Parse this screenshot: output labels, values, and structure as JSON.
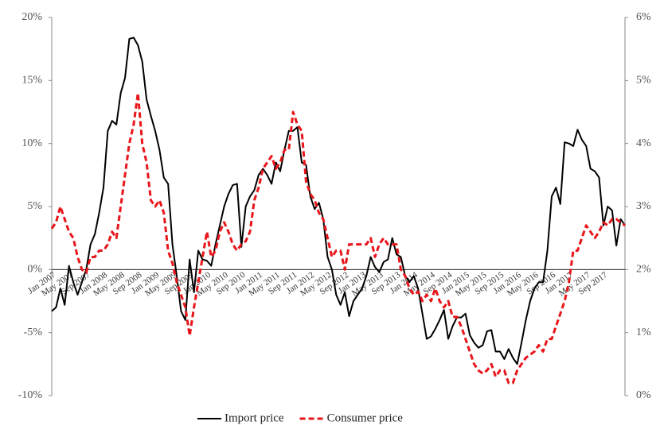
{
  "chart_data": {
    "type": "line",
    "categories": [
      "Jan 2007",
      null,
      null,
      null,
      "May 2007",
      null,
      null,
      null,
      "Sep 2007",
      null,
      null,
      null,
      "Jan 2008",
      null,
      null,
      null,
      "May 2008",
      null,
      null,
      null,
      "Sep 2008",
      null,
      null,
      null,
      "Jan 2009",
      null,
      null,
      null,
      "May 2009",
      null,
      null,
      null,
      "Sep 2009",
      null,
      null,
      null,
      "Jan 2010",
      null,
      null,
      null,
      "May 2010",
      null,
      null,
      null,
      "Sep 2010",
      null,
      null,
      null,
      "Jan 2011",
      null,
      null,
      null,
      "May 2011",
      null,
      null,
      null,
      "Sep 2011",
      null,
      null,
      null,
      "Jan 2012",
      null,
      null,
      null,
      "May 2012",
      null,
      null,
      null,
      "Sep 2012",
      null,
      null,
      null,
      "Jan 2013",
      null,
      null,
      null,
      "May 2013",
      null,
      null,
      null,
      "Sep 2013",
      null,
      null,
      null,
      "Jan 2014",
      null,
      null,
      null,
      "May 2014",
      null,
      null,
      null,
      "Sep 2014",
      null,
      null,
      null,
      "Jan 2015",
      null,
      null,
      null,
      "May 2015",
      null,
      null,
      null,
      "Sep 2015",
      null,
      null,
      null,
      "Jan 2016",
      null,
      null,
      null,
      "May 2016",
      null,
      null,
      null,
      "Sep 2016",
      null,
      null,
      null,
      "Jan 2017",
      null,
      null,
      null,
      "May 2017",
      null,
      null,
      null,
      "Sep 2017",
      null,
      null,
      null,
      null,
      null
    ],
    "series": [
      {
        "name": "Import price",
        "color": "#000000",
        "dash": false,
        "values": [
          -3.3,
          -3.0,
          -1.5,
          -2.8,
          0.3,
          -1.0,
          -2.0,
          -1.0,
          0,
          2.0,
          2.8,
          4.5,
          6.5,
          11,
          11.8,
          11.5,
          14,
          15.2,
          18.3,
          18.4,
          17.8,
          16.5,
          13.5,
          12.2,
          11,
          9.5,
          7.3,
          6.8,
          2,
          -0.5,
          -3.3,
          -4.0,
          0.8,
          -1.8,
          1.5,
          0.8,
          0.7,
          0.3,
          2,
          3.5,
          5,
          6,
          6.7,
          6.8,
          1.8,
          5,
          5.8,
          6.3,
          7.5,
          8,
          7.5,
          6.8,
          8.5,
          7.8,
          9.5,
          11,
          11,
          11.3,
          8.5,
          8.3,
          5.8,
          4.8,
          5.3,
          4,
          1,
          0,
          -2,
          -2.8,
          -1.8,
          -3.7,
          -2.5,
          -2,
          -1.5,
          -0.5,
          1,
          0.2,
          -0.2,
          0.6,
          0.8,
          2.5,
          1.2,
          1.0,
          -0.5,
          -1.0,
          -0.5,
          -1.5,
          -3.5,
          -5.5,
          -5.3,
          -4.7,
          -4,
          -3.2,
          -5.5,
          -4.5,
          -3.8,
          -3.8,
          -3.5,
          -5.2,
          -5.8,
          -6.2,
          -6.0,
          -4.9,
          -4.8,
          -6.5,
          -6.5,
          -7.1,
          -6.3,
          -7.0,
          -7.5,
          -5.8,
          -4,
          -2.5,
          -1.5,
          -1.0,
          -1.0,
          1.5,
          5.8,
          6.5,
          5.2,
          10.1,
          10,
          9.8,
          11.1,
          10.3,
          9.8,
          8,
          7.8,
          7.3,
          3.5,
          5,
          4.7,
          1.9,
          4.0,
          3.5
        ]
      },
      {
        "name": "Consumer price",
        "color": "#e8161b",
        "dash": true,
        "axis": "y2",
        "values": [
          2.65,
          2.75,
          3.0,
          2.8,
          2.6,
          2.5,
          2.2,
          2.0,
          1.95,
          2.2,
          2.2,
          2.3,
          2.3,
          2.4,
          2.6,
          2.5,
          3.0,
          3.5,
          4.0,
          4.3,
          4.8,
          4.0,
          3.7,
          3.1,
          3.0,
          3.1,
          2.9,
          2.3,
          2.1,
          1.8,
          1.6,
          1.4,
          0.95,
          1.4,
          1.8,
          2.2,
          2.6,
          2.2,
          2.3,
          2.6,
          2.75,
          2.6,
          2.4,
          2.3,
          2.4,
          2.45,
          2.6,
          3.1,
          3.3,
          3.6,
          3.7,
          3.8,
          3.6,
          3.7,
          3.9,
          3.9,
          4.5,
          4.3,
          4.2,
          3.4,
          3.2,
          3.1,
          2.9,
          2.8,
          2.5,
          2.2,
          2.3,
          2.3,
          2.0,
          2.4,
          2.4,
          2.4,
          2.4,
          2.4,
          2.5,
          2.2,
          2.4,
          2.5,
          2.4,
          2.4,
          2.4,
          2.0,
          1.9,
          1.7,
          1.6,
          1.65,
          1.5,
          1.6,
          1.5,
          1.7,
          1.5,
          1.4,
          1.5,
          1.25,
          1.25,
          1.1,
          0.9,
          0.7,
          0.5,
          0.4,
          0.35,
          0.4,
          0.5,
          0.3,
          0.4,
          0.4,
          0.2,
          0.2,
          0.4,
          0.5,
          0.6,
          0.65,
          0.7,
          0.8,
          0.7,
          0.9,
          0.9,
          1.1,
          1.3,
          1.5,
          1.8,
          2.3,
          2.3,
          2.5,
          2.7,
          2.6,
          2.5,
          2.6,
          2.75,
          2.7,
          2.8,
          2.8,
          2.75,
          2.7
        ]
      }
    ],
    "ylim": [
      -10,
      20
    ],
    "yticks": [
      {
        "value": -10,
        "label": "-10%"
      },
      {
        "value": -5,
        "label": "-5%"
      },
      {
        "value": 0,
        "label": "0%"
      },
      {
        "value": 5,
        "label": "5%"
      },
      {
        "value": 10,
        "label": "10%"
      },
      {
        "value": 15,
        "label": "15%"
      },
      {
        "value": 20,
        "label": "20%"
      }
    ],
    "y2lim": [
      0,
      6
    ],
    "y2ticks": [
      {
        "value": 0,
        "label": "0%"
      },
      {
        "value": 1,
        "label": "1%"
      },
      {
        "value": 2,
        "label": "2%"
      },
      {
        "value": 3,
        "label": "3%"
      },
      {
        "value": 4,
        "label": "4%"
      },
      {
        "value": 5,
        "label": "5%"
      },
      {
        "value": 6,
        "label": "6%"
      }
    ],
    "legend": "bottom"
  }
}
